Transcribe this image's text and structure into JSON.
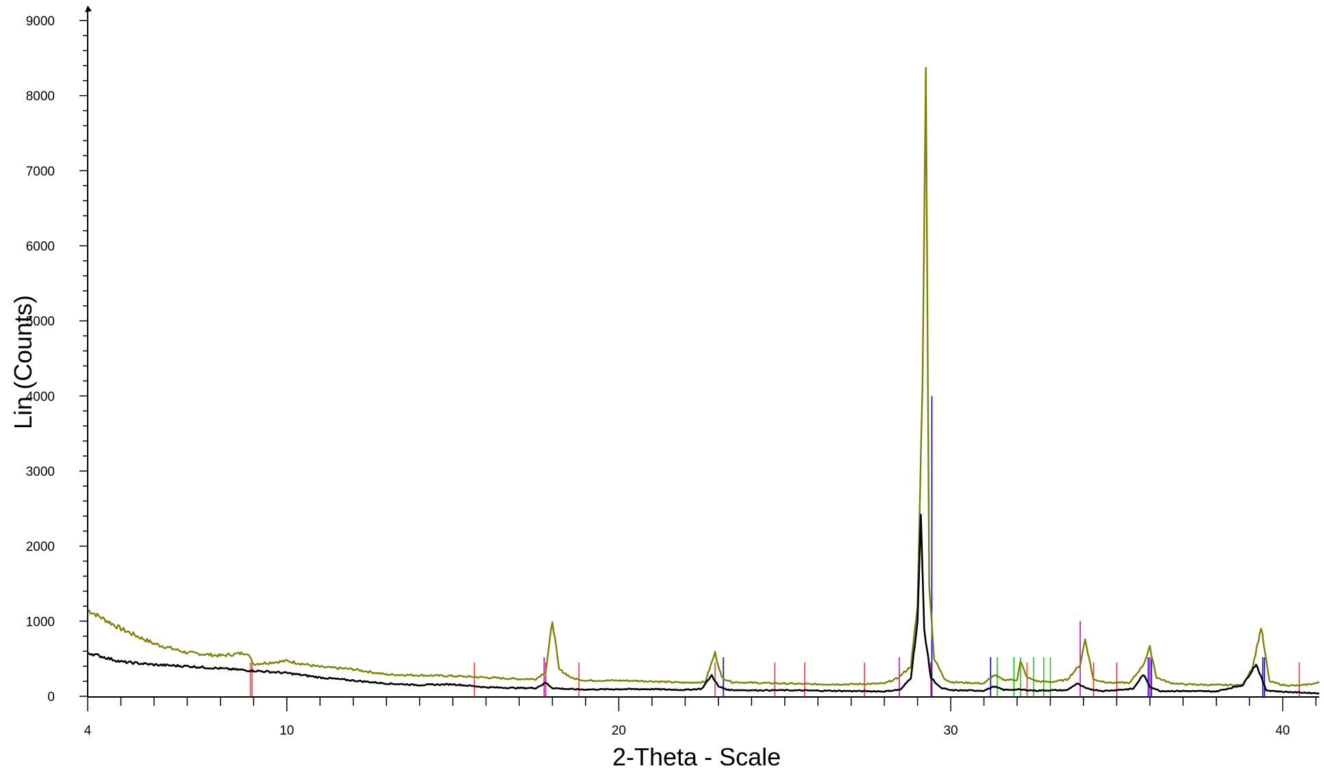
{
  "chart_data": {
    "type": "line",
    "title": "",
    "xlabel": "2-Theta - Scale",
    "ylabel": "Lin (Counts)",
    "xlim": [
      4,
      41.1
    ],
    "ylim": [
      0,
      9000
    ],
    "x_ticks": [
      4,
      10,
      20,
      30,
      40
    ],
    "x_tick_labels": [
      "4",
      "10",
      "20",
      "30",
      "40"
    ],
    "y_ticks": [
      0,
      1000,
      2000,
      3000,
      4000,
      5000,
      6000,
      7000,
      8000,
      9000
    ],
    "y_tick_labels": [
      "0",
      "1000",
      "2000",
      "3000",
      "4000",
      "5000",
      "6000",
      "7000",
      "8000",
      "9000"
    ],
    "grid": false,
    "legend": "none",
    "series": [
      {
        "color": "#808000",
        "x": [
          4,
          5,
          6,
          7,
          8,
          8.8,
          9,
          10,
          11,
          12,
          13,
          14,
          15,
          16,
          17,
          17.5,
          17.8,
          18,
          18.2,
          18.6,
          19,
          20,
          21,
          22,
          22.6,
          22.9,
          23.1,
          23.4,
          24,
          25,
          26,
          27,
          28,
          28.4,
          28.8,
          29.0,
          29.15,
          29.25,
          29.3,
          29.35,
          29.5,
          29.8,
          30,
          31,
          31.3,
          31.6,
          32,
          32.1,
          32.3,
          32.6,
          33,
          33.5,
          33.9,
          34.05,
          34.3,
          34.8,
          35.4,
          35.8,
          36.0,
          36.2,
          36.6,
          37,
          38,
          38.8,
          39.1,
          39.35,
          39.6,
          40,
          40.5,
          41.1
        ],
        "y": [
          1150,
          900,
          700,
          580,
          540,
          580,
          430,
          470,
          390,
          360,
          290,
          280,
          270,
          250,
          230,
          230,
          330,
          1010,
          360,
          240,
          210,
          210,
          200,
          180,
          190,
          580,
          250,
          190,
          180,
          170,
          160,
          160,
          170,
          240,
          400,
          1200,
          4200,
          8350,
          5000,
          1500,
          500,
          240,
          190,
          170,
          280,
          220,
          220,
          460,
          250,
          200,
          190,
          220,
          420,
          760,
          220,
          180,
          180,
          420,
          650,
          250,
          180,
          160,
          150,
          150,
          400,
          920,
          200,
          150,
          140,
          180
        ]
      },
      {
        "color": "#000000",
        "x": [
          4,
          5,
          6,
          7,
          8,
          9,
          10,
          11,
          12,
          13,
          14,
          15,
          16,
          17,
          17.5,
          17.8,
          18,
          18.5,
          19,
          20,
          21,
          22,
          22.5,
          22.8,
          23.0,
          23.3,
          24,
          25,
          26,
          27,
          28,
          28.5,
          28.8,
          29.0,
          29.1,
          29.2,
          29.4,
          29.7,
          30,
          31,
          31.3,
          31.6,
          32,
          32.2,
          32.6,
          33,
          33.5,
          33.8,
          34.1,
          34.6,
          35.5,
          35.8,
          36.0,
          36.3,
          37,
          38,
          38.8,
          39.2,
          39.5,
          40,
          41.1
        ],
        "y": [
          580,
          460,
          420,
          400,
          370,
          340,
          310,
          250,
          210,
          170,
          150,
          160,
          120,
          110,
          110,
          180,
          110,
          95,
          90,
          95,
          95,
          85,
          100,
          280,
          130,
          85,
          80,
          80,
          75,
          70,
          65,
          90,
          250,
          1000,
          2400,
          900,
          250,
          110,
          80,
          75,
          130,
          85,
          90,
          85,
          75,
          80,
          80,
          170,
          100,
          70,
          100,
          290,
          130,
          70,
          70,
          65,
          150,
          430,
          80,
          60,
          40
        ]
      }
    ],
    "reference_lines": [
      {
        "color": "#ff3333",
        "x": [
          8.9,
          8.95,
          15.65,
          17.8,
          18.8,
          22.9,
          24.7,
          25.6,
          27.4,
          29.4,
          32.3,
          34.3,
          35.0,
          36.0,
          40.5
        ]
      },
      {
        "color": "#0000ff",
        "x": [
          23.15,
          29.43,
          31.2,
          35.95,
          36.05,
          39.4,
          39.45
        ]
      },
      {
        "color": "#cc00cc",
        "x": [
          17.75,
          28.45,
          33.9,
          36.0
        ]
      },
      {
        "color": "#00dd00",
        "x": [
          31.4,
          31.9,
          32.1,
          32.5,
          32.8,
          33.0
        ]
      }
    ]
  }
}
